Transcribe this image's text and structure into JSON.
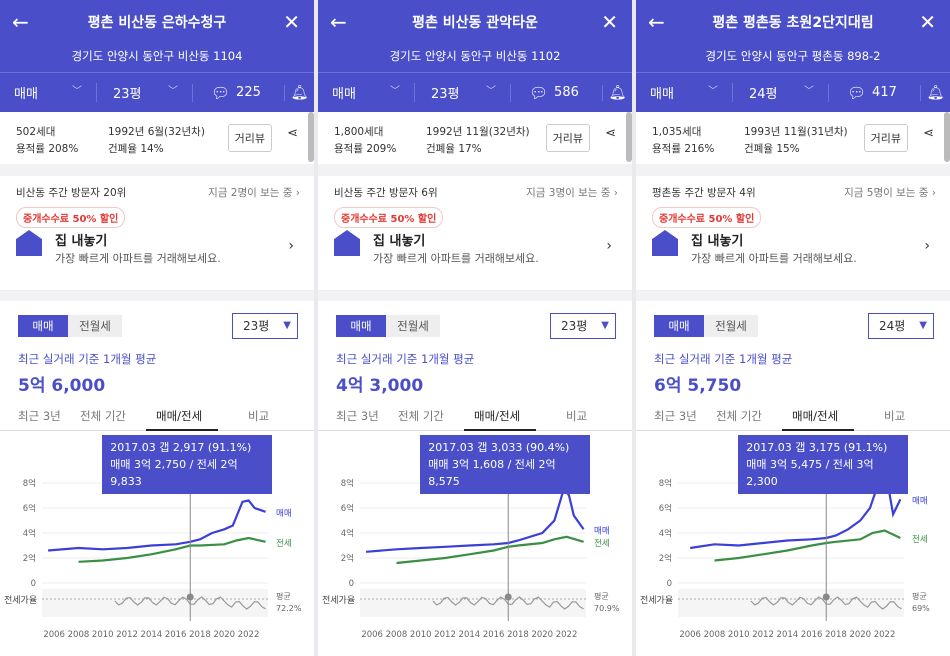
{
  "panels": [
    {
      "title": "평촌 비산동 은하수청구",
      "address": "경기도 안양시 동안구 비산동 1104",
      "trade_type": "매매",
      "pyeong": "23평",
      "comments": "225",
      "households": "502세대",
      "floor_area_ratio": "용적률 208%",
      "built": "1992년 6월(32년차)",
      "coverage_ratio": "건폐율 14%",
      "distance_view": "거리뷰",
      "visitors_rank": "비산동 주간 방문자 20위",
      "viewing_now": "지금 2명이 보는 중",
      "promo_badge": "중개수수료 50% 할인",
      "promo_title": "집 내놓기",
      "promo_sub": "가장 빠르게 아파트를 거래해보세요.",
      "seg_sale": "매매",
      "seg_jeonse": "전월세",
      "dropdown": "23평",
      "avg_label": "최근 실거래 기준 1개월 평균",
      "avg_price": "5억 6,000",
      "tabs": [
        "최근 3년",
        "전체 기간",
        "매매/전세",
        "비교"
      ],
      "tooltip_line1": "2017.03  갭 2,917 (91.1%)",
      "tooltip_line2": "매매 3억 2,750 / 전세 2억 9,833",
      "ratio_avg_label": "평균",
      "ratio_avg_value": "72.2%"
    },
    {
      "title": "평촌 비산동 관악타운",
      "address": "경기도 안양시 동안구 비산동 1102",
      "trade_type": "매매",
      "pyeong": "23평",
      "comments": "586",
      "households": "1,800세대",
      "floor_area_ratio": "용적률 209%",
      "built": "1992년 11월(32년차)",
      "coverage_ratio": "건폐율 17%",
      "distance_view": "거리뷰",
      "visitors_rank": "비산동 주간 방문자 6위",
      "viewing_now": "지금 3명이 보는 중",
      "promo_badge": "중개수수료 50% 할인",
      "promo_title": "집 내놓기",
      "promo_sub": "가장 빠르게 아파트를 거래해보세요.",
      "seg_sale": "매매",
      "seg_jeonse": "전월세",
      "dropdown": "23평",
      "avg_label": "최근 실거래 기준 1개월 평균",
      "avg_price": "4억 3,000",
      "tabs": [
        "최근 3년",
        "전체 기간",
        "매매/전세",
        "비교"
      ],
      "tooltip_line1": "2017.03  갭 3,033 (90.4%)",
      "tooltip_line2": "매매 3억 1,608 / 전세 2억 8,575",
      "ratio_avg_label": "평균",
      "ratio_avg_value": "70.9%"
    },
    {
      "title": "평촌 평촌동 초원2단지대림",
      "address": "경기도 안양시 동안구 평촌동 898-2",
      "trade_type": "매매",
      "pyeong": "24평",
      "comments": "417",
      "households": "1,035세대",
      "floor_area_ratio": "용적률 216%",
      "built": "1993년 11월(31년차)",
      "coverage_ratio": "건폐율 15%",
      "distance_view": "거리뷰",
      "visitors_rank": "평촌동 주간 방문자 4위",
      "viewing_now": "지금 5명이 보는 중",
      "promo_badge": "중개수수료 50% 할인",
      "promo_title": "집 내놓기",
      "promo_sub": "가장 빠르게 아파트를 거래해보세요.",
      "seg_sale": "매매",
      "seg_jeonse": "전월세",
      "dropdown": "24평",
      "avg_label": "최근 실거래 기준 1개월 평균",
      "avg_price": "6억 5,750",
      "tabs": [
        "최근 3년",
        "전체 기간",
        "매매/전세",
        "비교"
      ],
      "tooltip_line1": "2017.03  갭 3,175 (91.1%)",
      "tooltip_line2": "매매 3억 5,475 / 전세 3억 2,300",
      "ratio_avg_label": "평균",
      "ratio_avg_value": "69%"
    }
  ],
  "chart_data": [
    {
      "type": "line",
      "x_ticks": [
        "2006",
        "2008",
        "2010",
        "2012",
        "2014",
        "2016",
        "2018",
        "2020",
        "2022"
      ],
      "y_ticks": [
        "8억",
        "6억",
        "4억",
        "2억",
        "0"
      ],
      "ratio_label": "전세가율",
      "series": [
        {
          "name": "매매",
          "color": "#3b3fd6",
          "x": [
            2005.5,
            2008,
            2010,
            2012,
            2014,
            2016,
            2017.2,
            2018,
            2019,
            2020,
            2020.7,
            2021.5,
            2022,
            2022.5,
            2023.4
          ],
          "y": [
            2.6,
            2.8,
            2.7,
            2.8,
            3.0,
            3.1,
            3.3,
            3.5,
            4.0,
            4.3,
            4.6,
            6.5,
            6.6,
            6.0,
            5.7
          ]
        },
        {
          "name": "전세",
          "color": "#3a8f45",
          "x": [
            2008,
            2010,
            2012,
            2014,
            2016,
            2017.2,
            2018,
            2020,
            2021,
            2022,
            2023.4
          ],
          "y": [
            1.7,
            1.8,
            2.0,
            2.3,
            2.7,
            3.0,
            3.0,
            3.1,
            3.4,
            3.6,
            3.3
          ]
        }
      ]
    },
    {
      "type": "line",
      "x_ticks": [
        "2006",
        "2008",
        "2010",
        "2012",
        "2014",
        "2016",
        "2018",
        "2020",
        "2022"
      ],
      "y_ticks": [
        "8억",
        "6억",
        "4억",
        "2억",
        "0"
      ],
      "ratio_label": "전세가율",
      "series": [
        {
          "name": "매매",
          "color": "#3b3fd6",
          "x": [
            2005.5,
            2008,
            2010,
            2012,
            2014,
            2016,
            2017.2,
            2018,
            2020,
            2021,
            2021.8,
            2022.2,
            2022.6,
            2023.4
          ],
          "y": [
            2.5,
            2.7,
            2.8,
            2.9,
            3.0,
            3.1,
            3.2,
            3.4,
            4.0,
            5.0,
            7.6,
            7.0,
            5.4,
            4.3
          ]
        },
        {
          "name": "전세",
          "color": "#3a8f45",
          "x": [
            2008,
            2010,
            2012,
            2014,
            2016,
            2017.2,
            2018,
            2020,
            2021,
            2022,
            2023.4
          ],
          "y": [
            1.6,
            1.8,
            2.0,
            2.3,
            2.6,
            2.9,
            3.0,
            3.2,
            3.5,
            3.7,
            3.3
          ]
        }
      ]
    },
    {
      "type": "line",
      "x_ticks": [
        "2006",
        "2008",
        "2010",
        "2012",
        "2014",
        "2016",
        "2018",
        "2020",
        "2022"
      ],
      "y_ticks": [
        "8억",
        "6억",
        "4억",
        "2억",
        "0"
      ],
      "ratio_label": "전세가율",
      "series": [
        {
          "name": "매매",
          "color": "#3b3fd6",
          "x": [
            2006,
            2008,
            2010,
            2012,
            2014,
            2016,
            2017.2,
            2018,
            2019,
            2020,
            2020.8,
            2021.5,
            2022,
            2022.4,
            2022.7,
            2023.3
          ],
          "y": [
            2.8,
            3.1,
            3.0,
            3.2,
            3.4,
            3.5,
            3.6,
            3.8,
            4.3,
            5.0,
            6.0,
            8.0,
            7.8,
            7.2,
            5.5,
            6.7
          ]
        },
        {
          "name": "전세",
          "color": "#3a8f45",
          "x": [
            2008,
            2010,
            2012,
            2014,
            2016,
            2017.2,
            2018,
            2020,
            2021,
            2022,
            2023.3
          ],
          "y": [
            1.8,
            2.0,
            2.3,
            2.6,
            3.0,
            3.2,
            3.3,
            3.5,
            4.0,
            4.2,
            3.6
          ]
        }
      ]
    }
  ]
}
